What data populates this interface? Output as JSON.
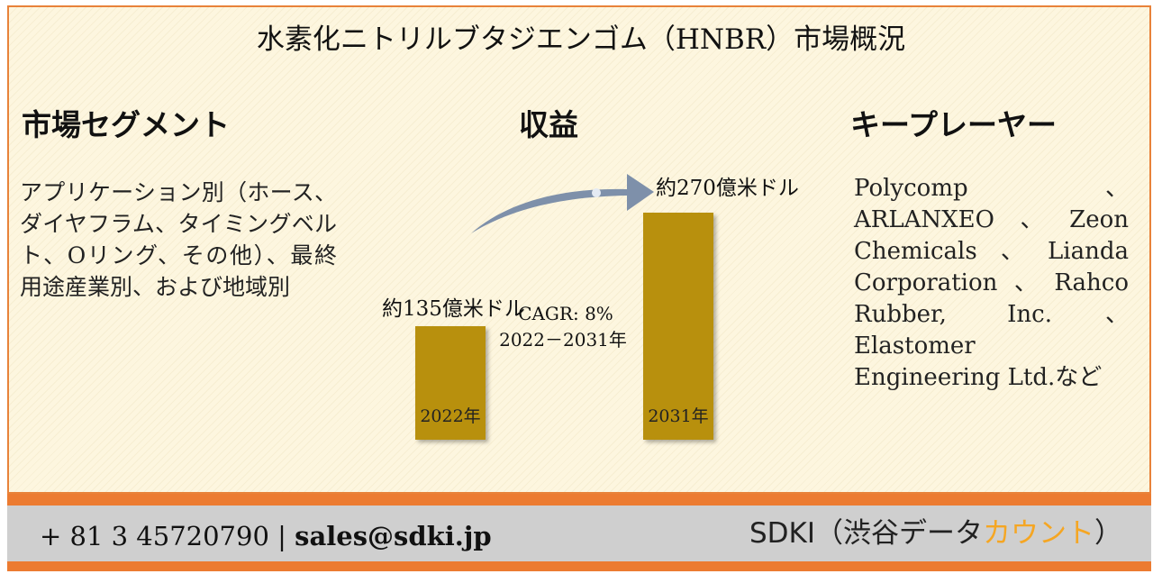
{
  "title": "水素化ニトリルブタジエンゴム（HNBR）市場概況",
  "segment": {
    "heading": "市場セグメント",
    "text": "アプリケーション別（ホース、ダイヤフラム、タイミングベルト、Oリング、その他）、最終用途産業別、および地域別"
  },
  "revenue": {
    "heading": "収益"
  },
  "key_players": {
    "heading": "キープレーヤー",
    "text": "Polycomp、ARLANXEO、Zeon Chemicals、Lianda Corporation、Rahco Rubber, Inc.、Elastomer Engineering Ltd.など"
  },
  "chart_data": {
    "type": "bar",
    "categories": [
      "2022年",
      "2031年"
    ],
    "values": [
      135,
      270
    ],
    "value_labels": [
      "約135億米ドル",
      "約270億米ドル"
    ],
    "cagr_label": "CAGR: 8%",
    "cagr_period": "2022－2031年",
    "bar_color": "#b8900f",
    "arrow_color": "#7e90aa"
  },
  "footer": {
    "phone": "+ 81 3 45720790",
    "separator": "|",
    "email": "sales@sdki.jp",
    "brand_prefix": "SDKI（渋谷デ",
    "brand_mid": "ータ",
    "brand_accent": "カウント",
    "brand_suffix": "）",
    "accent_color": "#f5a623",
    "bar_color": "#ec7b31"
  }
}
